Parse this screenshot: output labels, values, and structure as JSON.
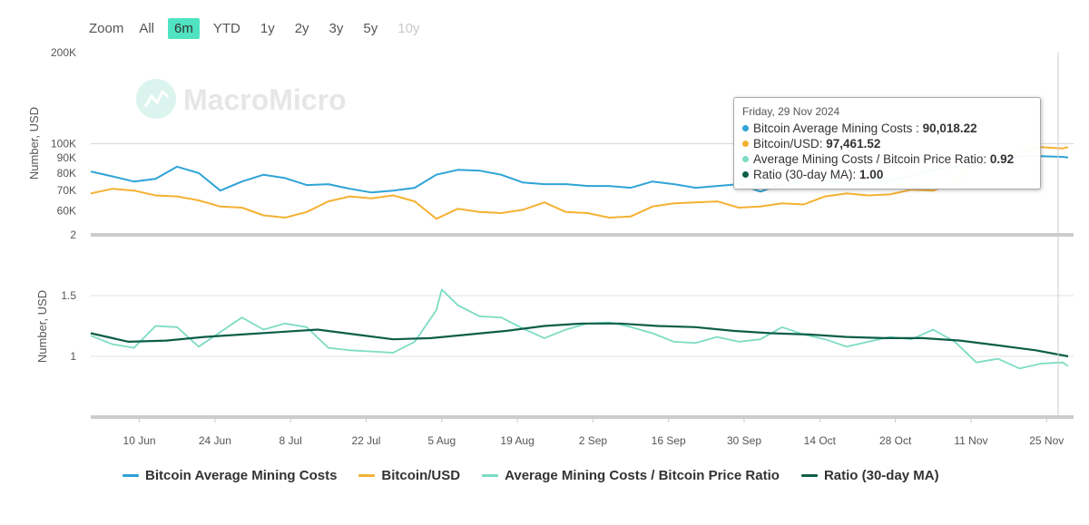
{
  "zoom": {
    "label": "Zoom",
    "buttons": [
      {
        "label": "All",
        "state": "normal"
      },
      {
        "label": "6m",
        "state": "active"
      },
      {
        "label": "YTD",
        "state": "normal"
      },
      {
        "label": "1y",
        "state": "normal"
      },
      {
        "label": "2y",
        "state": "normal"
      },
      {
        "label": "3y",
        "state": "normal"
      },
      {
        "label": "5y",
        "state": "normal"
      },
      {
        "label": "10y",
        "state": "disabled"
      }
    ]
  },
  "watermark": "MacroMicro",
  "tooltip": {
    "date": "Friday, 29 Nov 2024",
    "rows": [
      {
        "label": "Bitcoin Average Mining Costs : ",
        "value": "90,018.22",
        "color": "#2ea3d6"
      },
      {
        "label": "Bitcoin/USD: ",
        "value": "97,461.52",
        "color": "#f5b134"
      },
      {
        "label": "Average Mining Costs / Bitcoin Price Ratio: ",
        "value": "0.92",
        "color": "#7ddcc3"
      },
      {
        "label": "Ratio (30-day MA): ",
        "value": "1.00",
        "color": "#0d5e48"
      }
    ]
  },
  "legend": [
    {
      "label": "Bitcoin Average Mining Costs",
      "color": "#2ea3d6"
    },
    {
      "label": "Bitcoin/USD",
      "color": "#f5b134"
    },
    {
      "label": "Average Mining Costs / Bitcoin Price Ratio",
      "color": "#7ddcc3"
    },
    {
      "label": "Ratio (30-day MA)",
      "color": "#0d5e48"
    }
  ],
  "chart_data": [
    {
      "type": "line",
      "ylabel": "Number, USD",
      "y_scale": "log",
      "ylim": [
        50000,
        200000
      ],
      "y_ticks": [
        {
          "value": 60000,
          "label": "60K"
        },
        {
          "value": 70000,
          "label": "70K"
        },
        {
          "value": 80000,
          "label": "80K"
        },
        {
          "value": 90000,
          "label": "90K"
        },
        {
          "value": 100000,
          "label": "100K"
        },
        {
          "value": 200000,
          "label": "200K"
        }
      ],
      "x_ticks": [
        "10 Jun",
        "24 Jun",
        "8 Jul",
        "22 Jul",
        "5 Aug",
        "19 Aug",
        "2 Sep",
        "16 Sep",
        "30 Sep",
        "14 Oct",
        "28 Oct",
        "11 Nov",
        "25 Nov"
      ],
      "x_start": "2024-06-01",
      "x_end": "2024-11-30",
      "series": [
        {
          "name": "Bitcoin Average Mining Costs",
          "color": "#2ea3d6",
          "x": [
            "2024-06-01",
            "2024-06-05",
            "2024-06-09",
            "2024-06-13",
            "2024-06-17",
            "2024-06-21",
            "2024-06-25",
            "2024-06-29",
            "2024-07-03",
            "2024-07-07",
            "2024-07-11",
            "2024-07-15",
            "2024-07-19",
            "2024-07-23",
            "2024-07-27",
            "2024-07-31",
            "2024-08-04",
            "2024-08-08",
            "2024-08-12",
            "2024-08-16",
            "2024-08-20",
            "2024-08-24",
            "2024-08-28",
            "2024-09-01",
            "2024-09-05",
            "2024-09-09",
            "2024-09-13",
            "2024-09-17",
            "2024-09-21",
            "2024-09-25",
            "2024-09-29",
            "2024-10-03",
            "2024-10-07",
            "2024-10-11",
            "2024-10-15",
            "2024-10-19",
            "2024-10-23",
            "2024-10-27",
            "2024-10-31",
            "2024-11-04",
            "2024-11-08",
            "2024-11-12",
            "2024-11-16",
            "2024-11-20",
            "2024-11-24",
            "2024-11-28",
            "2024-11-29"
          ],
          "values": [
            81000,
            78000,
            75000,
            76500,
            84000,
            80000,
            70000,
            75000,
            79000,
            77000,
            73000,
            73500,
            71000,
            69000,
            70000,
            71500,
            79000,
            82000,
            81500,
            79000,
            74500,
            73500,
            73500,
            72500,
            72500,
            71500,
            75000,
            73500,
            71500,
            72500,
            73500,
            69500,
            73500,
            75000,
            75500,
            74000,
            74500,
            75500,
            78500,
            82000,
            84000,
            84500,
            88000,
            91000,
            91000,
            90500,
            90018.22
          ]
        },
        {
          "name": "Bitcoin/USD",
          "color": "#f5b134",
          "x": [
            "2024-06-01",
            "2024-06-05",
            "2024-06-09",
            "2024-06-13",
            "2024-06-17",
            "2024-06-21",
            "2024-06-25",
            "2024-06-29",
            "2024-07-03",
            "2024-07-07",
            "2024-07-11",
            "2024-07-15",
            "2024-07-19",
            "2024-07-23",
            "2024-07-27",
            "2024-07-31",
            "2024-08-04",
            "2024-08-08",
            "2024-08-12",
            "2024-08-16",
            "2024-08-20",
            "2024-08-24",
            "2024-08-28",
            "2024-09-01",
            "2024-09-05",
            "2024-09-09",
            "2024-09-13",
            "2024-09-17",
            "2024-09-21",
            "2024-09-25",
            "2024-09-29",
            "2024-10-03",
            "2024-10-07",
            "2024-10-11",
            "2024-10-15",
            "2024-10-19",
            "2024-10-23",
            "2024-10-27",
            "2024-10-31",
            "2024-11-04",
            "2024-11-08",
            "2024-11-12",
            "2024-11-16",
            "2024-11-20",
            "2024-11-24",
            "2024-11-28",
            "2024-11-29"
          ],
          "values": [
            68500,
            71000,
            70000,
            67500,
            67000,
            65000,
            62000,
            61500,
            58000,
            57000,
            59500,
            64500,
            67000,
            66000,
            67500,
            64500,
            56500,
            61000,
            59500,
            59000,
            60500,
            64000,
            59500,
            59000,
            57000,
            57500,
            62000,
            63500,
            64000,
            64500,
            61500,
            62000,
            63500,
            63000,
            67000,
            68500,
            67500,
            68000,
            70500,
            70000,
            74000,
            88000,
            91000,
            94000,
            97500,
            96500,
            97461.52
          ]
        }
      ]
    },
    {
      "type": "line",
      "ylabel": "Number, USD",
      "ylim": [
        0.5,
        2
      ],
      "y_ticks": [
        {
          "value": 1,
          "label": "1"
        },
        {
          "value": 1.5,
          "label": "1.5"
        },
        {
          "value": 2,
          "label": "2"
        }
      ],
      "x_ticks": [
        "10 Jun",
        "24 Jun",
        "8 Jul",
        "22 Jul",
        "5 Aug",
        "19 Aug",
        "2 Sep",
        "16 Sep",
        "30 Sep",
        "14 Oct",
        "28 Oct",
        "11 Nov",
        "25 Nov"
      ],
      "x_start": "2024-06-01",
      "x_end": "2024-11-30",
      "series": [
        {
          "name": "Average Mining Costs / Bitcoin Price Ratio",
          "color": "#7ddcc3",
          "x": [
            "2024-06-01",
            "2024-06-05",
            "2024-06-09",
            "2024-06-13",
            "2024-06-17",
            "2024-06-21",
            "2024-06-25",
            "2024-06-29",
            "2024-07-03",
            "2024-07-07",
            "2024-07-11",
            "2024-07-15",
            "2024-07-19",
            "2024-07-23",
            "2024-07-27",
            "2024-07-31",
            "2024-08-04",
            "2024-08-05",
            "2024-08-08",
            "2024-08-12",
            "2024-08-16",
            "2024-08-20",
            "2024-08-24",
            "2024-08-28",
            "2024-09-01",
            "2024-09-05",
            "2024-09-09",
            "2024-09-13",
            "2024-09-17",
            "2024-09-21",
            "2024-09-25",
            "2024-09-29",
            "2024-10-03",
            "2024-10-07",
            "2024-10-11",
            "2024-10-15",
            "2024-10-19",
            "2024-10-23",
            "2024-10-27",
            "2024-10-31",
            "2024-11-04",
            "2024-11-08",
            "2024-11-12",
            "2024-11-16",
            "2024-11-20",
            "2024-11-24",
            "2024-11-28",
            "2024-11-29"
          ],
          "values": [
            1.17,
            1.1,
            1.07,
            1.25,
            1.24,
            1.08,
            1.2,
            1.32,
            1.22,
            1.27,
            1.24,
            1.07,
            1.05,
            1.04,
            1.03,
            1.12,
            1.38,
            1.55,
            1.42,
            1.33,
            1.32,
            1.23,
            1.15,
            1.22,
            1.27,
            1.28,
            1.24,
            1.19,
            1.12,
            1.11,
            1.16,
            1.12,
            1.14,
            1.24,
            1.18,
            1.14,
            1.08,
            1.12,
            1.16,
            1.14,
            1.22,
            1.12,
            0.95,
            0.98,
            0.9,
            0.94,
            0.95,
            0.92
          ]
        },
        {
          "name": "Ratio (30-day MA)",
          "color": "#0d5e48",
          "x": [
            "2024-06-01",
            "2024-06-08",
            "2024-06-15",
            "2024-06-22",
            "2024-06-29",
            "2024-07-06",
            "2024-07-13",
            "2024-07-20",
            "2024-07-27",
            "2024-08-03",
            "2024-08-10",
            "2024-08-17",
            "2024-08-24",
            "2024-08-31",
            "2024-09-07",
            "2024-09-14",
            "2024-09-21",
            "2024-09-28",
            "2024-10-05",
            "2024-10-12",
            "2024-10-19",
            "2024-10-26",
            "2024-11-02",
            "2024-11-09",
            "2024-11-16",
            "2024-11-23",
            "2024-11-29"
          ],
          "values": [
            1.19,
            1.12,
            1.13,
            1.16,
            1.18,
            1.2,
            1.22,
            1.18,
            1.14,
            1.15,
            1.18,
            1.21,
            1.25,
            1.27,
            1.27,
            1.25,
            1.24,
            1.21,
            1.19,
            1.18,
            1.16,
            1.15,
            1.15,
            1.13,
            1.09,
            1.05,
            1.0
          ]
        }
      ]
    }
  ]
}
